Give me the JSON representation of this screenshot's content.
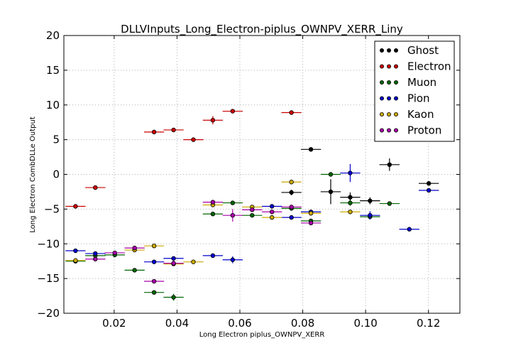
{
  "chart_data": {
    "type": "scatter",
    "title": "DLLVInputs_Long_Electron-piplus_OWNPV_XERR_Liny",
    "xlabel": "Long Electron piplus_OWNPV_XERR",
    "ylabel": "Long Electron CombDLLe Output",
    "xlim": [
      0.004,
      0.13
    ],
    "ylim": [
      -20,
      20
    ],
    "xticks": [
      0.02,
      0.04,
      0.06,
      0.08,
      0.1,
      0.12
    ],
    "xtick_labels": [
      "0.02",
      "0.04",
      "0.06",
      "0.08",
      "0.10",
      "0.12"
    ],
    "yticks": [
      -20,
      -15,
      -10,
      -5,
      0,
      5,
      10,
      15,
      20
    ],
    "ytick_labels": [
      "−20",
      "−15",
      "−10",
      "−5",
      "0",
      "5",
      "10",
      "15",
      "20"
    ],
    "grid": true,
    "legend_position": "top-right",
    "series": [
      {
        "name": "Ghost",
        "color": "#000000",
        "points": [
          {
            "x": 0.0764,
            "y": -2.6,
            "xerr": 0.0032,
            "yerr": 0.4
          },
          {
            "x": 0.0826,
            "y": 3.6,
            "xerr": 0.0032,
            "yerr": 0.3
          },
          {
            "x": 0.0889,
            "y": -2.5,
            "xerr": 0.0032,
            "yerr": 1.8
          },
          {
            "x": 0.0951,
            "y": -3.3,
            "xerr": 0.0032,
            "yerr": 0.7
          },
          {
            "x": 0.1014,
            "y": -3.8,
            "xerr": 0.0032,
            "yerr": 0.5
          },
          {
            "x": 0.1076,
            "y": 1.4,
            "xerr": 0.0032,
            "yerr": 0.9
          },
          {
            "x": 0.1201,
            "y": -1.3,
            "xerr": 0.0032,
            "yerr": 0.3
          }
        ]
      },
      {
        "name": "Electron",
        "color": "#cc0000",
        "points": [
          {
            "x": 0.0077,
            "y": -4.6,
            "xerr": 0.0032,
            "yerr": 0.2
          },
          {
            "x": 0.014,
            "y": -1.9,
            "xerr": 0.0032,
            "yerr": 0.2
          },
          {
            "x": 0.0327,
            "y": 6.1,
            "xerr": 0.0032,
            "yerr": 0.3
          },
          {
            "x": 0.0389,
            "y": 6.4,
            "xerr": 0.0032,
            "yerr": 0.2
          },
          {
            "x": 0.0452,
            "y": 5.0,
            "xerr": 0.0032,
            "yerr": 0.2
          },
          {
            "x": 0.0514,
            "y": 7.8,
            "xerr": 0.0032,
            "yerr": 0.6
          },
          {
            "x": 0.0577,
            "y": 9.1,
            "xerr": 0.0032,
            "yerr": 0.2
          },
          {
            "x": 0.0764,
            "y": 8.9,
            "xerr": 0.0032,
            "yerr": 0.2
          }
        ]
      },
      {
        "name": "Muon",
        "color": "#006600",
        "points": [
          {
            "x": 0.0077,
            "y": -12.5,
            "xerr": 0.0032,
            "yerr": 0.3
          },
          {
            "x": 0.014,
            "y": -11.7,
            "xerr": 0.0032,
            "yerr": 0.3
          },
          {
            "x": 0.0202,
            "y": -11.6,
            "xerr": 0.0032,
            "yerr": 0.3
          },
          {
            "x": 0.0265,
            "y": -13.8,
            "xerr": 0.0032,
            "yerr": 0.3
          },
          {
            "x": 0.0327,
            "y": -17.0,
            "xerr": 0.0032,
            "yerr": 0.3
          },
          {
            "x": 0.0389,
            "y": -17.7,
            "xerr": 0.0032,
            "yerr": 0.5
          },
          {
            "x": 0.0514,
            "y": -5.7,
            "xerr": 0.0032,
            "yerr": 0.3
          },
          {
            "x": 0.0577,
            "y": -4.1,
            "xerr": 0.0032,
            "yerr": 0.3
          },
          {
            "x": 0.0639,
            "y": -5.9,
            "xerr": 0.0032,
            "yerr": 0.3
          },
          {
            "x": 0.0764,
            "y": -4.9,
            "xerr": 0.0032,
            "yerr": 0.3
          },
          {
            "x": 0.0826,
            "y": -6.7,
            "xerr": 0.0032,
            "yerr": 0.3
          },
          {
            "x": 0.0889,
            "y": 0.0,
            "xerr": 0.0032,
            "yerr": 0.2
          },
          {
            "x": 0.0951,
            "y": -4.1,
            "xerr": 0.0032,
            "yerr": 0.4
          },
          {
            "x": 0.1014,
            "y": -6.1,
            "xerr": 0.0032,
            "yerr": 0.4
          },
          {
            "x": 0.1076,
            "y": -4.2,
            "xerr": 0.0032,
            "yerr": 0.2
          }
        ]
      },
      {
        "name": "Pion",
        "color": "#0000cc",
        "points": [
          {
            "x": 0.0077,
            "y": -11.0,
            "xerr": 0.0032,
            "yerr": 0.3
          },
          {
            "x": 0.014,
            "y": -11.4,
            "xerr": 0.0032,
            "yerr": 0.3
          },
          {
            "x": 0.0327,
            "y": -12.6,
            "xerr": 0.0032,
            "yerr": 0.3
          },
          {
            "x": 0.0389,
            "y": -12.1,
            "xerr": 0.0032,
            "yerr": 0.3
          },
          {
            "x": 0.0514,
            "y": -11.7,
            "xerr": 0.0032,
            "yerr": 0.3
          },
          {
            "x": 0.0577,
            "y": -12.3,
            "xerr": 0.0032,
            "yerr": 0.5
          },
          {
            "x": 0.0702,
            "y": -4.6,
            "xerr": 0.0032,
            "yerr": 0.3
          },
          {
            "x": 0.0764,
            "y": -6.2,
            "xerr": 0.0032,
            "yerr": 0.3
          },
          {
            "x": 0.0826,
            "y": -5.4,
            "xerr": 0.0032,
            "yerr": 0.3
          },
          {
            "x": 0.0951,
            "y": 0.2,
            "xerr": 0.0032,
            "yerr": 1.3
          },
          {
            "x": 0.1014,
            "y": -5.9,
            "xerr": 0.0032,
            "yerr": 0.6
          },
          {
            "x": 0.1139,
            "y": -7.9,
            "xerr": 0.0032,
            "yerr": 0.2
          },
          {
            "x": 0.1201,
            "y": -2.3,
            "xerr": 0.0032,
            "yerr": 0.2
          }
        ]
      },
      {
        "name": "Kaon",
        "color": "#ccaa00",
        "points": [
          {
            "x": 0.0077,
            "y": -12.4,
            "xerr": 0.0032,
            "yerr": 0.2
          },
          {
            "x": 0.0265,
            "y": -10.9,
            "xerr": 0.0032,
            "yerr": 0.3
          },
          {
            "x": 0.0327,
            "y": -10.3,
            "xerr": 0.0032,
            "yerr": 0.2
          },
          {
            "x": 0.0389,
            "y": -12.9,
            "xerr": 0.0032,
            "yerr": 0.3
          },
          {
            "x": 0.0452,
            "y": -12.6,
            "xerr": 0.0032,
            "yerr": 0.3
          },
          {
            "x": 0.0514,
            "y": -4.4,
            "xerr": 0.0032,
            "yerr": 0.3
          },
          {
            "x": 0.0639,
            "y": -4.7,
            "xerr": 0.0032,
            "yerr": 0.3
          },
          {
            "x": 0.0702,
            "y": -6.2,
            "xerr": 0.0032,
            "yerr": 0.3
          },
          {
            "x": 0.0764,
            "y": -1.1,
            "xerr": 0.0032,
            "yerr": 0.2
          },
          {
            "x": 0.0826,
            "y": -5.6,
            "xerr": 0.0032,
            "yerr": 0.3
          },
          {
            "x": 0.0951,
            "y": -5.4,
            "xerr": 0.0032,
            "yerr": 0.2
          }
        ]
      },
      {
        "name": "Proton",
        "color": "#aa00aa",
        "points": [
          {
            "x": 0.014,
            "y": -12.2,
            "xerr": 0.0032,
            "yerr": 0.3
          },
          {
            "x": 0.0202,
            "y": -11.3,
            "xerr": 0.0032,
            "yerr": 0.3
          },
          {
            "x": 0.0265,
            "y": -10.6,
            "xerr": 0.0032,
            "yerr": 0.3
          },
          {
            "x": 0.0327,
            "y": -15.4,
            "xerr": 0.0032,
            "yerr": 0.3
          },
          {
            "x": 0.0389,
            "y": -12.8,
            "xerr": 0.0032,
            "yerr": 0.4
          },
          {
            "x": 0.0514,
            "y": -4.0,
            "xerr": 0.0032,
            "yerr": 0.3
          },
          {
            "x": 0.0577,
            "y": -5.9,
            "xerr": 0.0032,
            "yerr": 0.9
          },
          {
            "x": 0.0639,
            "y": -5.1,
            "xerr": 0.0032,
            "yerr": 0.3
          },
          {
            "x": 0.0702,
            "y": -5.4,
            "xerr": 0.0032,
            "yerr": 0.3
          },
          {
            "x": 0.0764,
            "y": -4.7,
            "xerr": 0.0032,
            "yerr": 0.3
          },
          {
            "x": 0.0826,
            "y": -7.0,
            "xerr": 0.0032,
            "yerr": 0.3
          }
        ]
      }
    ]
  }
}
